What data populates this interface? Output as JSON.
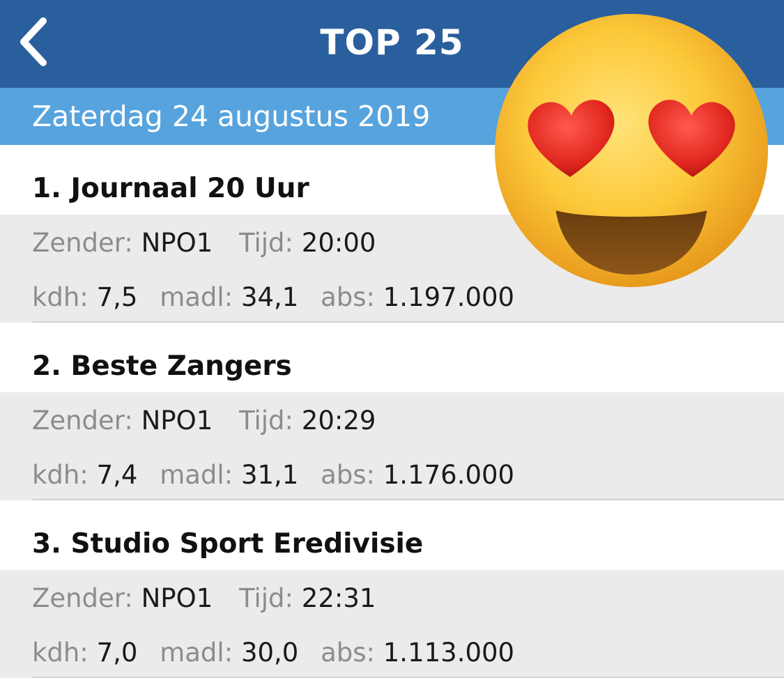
{
  "header": {
    "back_icon": "chevron-left-icon",
    "title": "TOP 25"
  },
  "date_label": "Zaterdag 24 augustus 2019",
  "labels": {
    "channel": "Zender:",
    "time": "Tijd:",
    "kdh": "kdh:",
    "madl": "madl:",
    "abs": "abs:"
  },
  "items": [
    {
      "title": "1. Journaal 20 Uur",
      "channel": "NPO1",
      "time": "20:00",
      "kdh": "7,5",
      "madl": "34,1",
      "abs": "1.197.000"
    },
    {
      "title": "2. Beste Zangers",
      "channel": "NPO1",
      "time": "20:29",
      "kdh": "7,4",
      "madl": "31,1",
      "abs": "1.176.000"
    },
    {
      "title": "3. Studio Sport Eredivisie",
      "channel": "NPO1",
      "time": "22:31",
      "kdh": "7,0",
      "madl": "30,0",
      "abs": "1.113.000"
    }
  ],
  "overlay": {
    "icon": "heart-eyes-emoji-icon"
  },
  "colors": {
    "navbar": "#2a5f9e",
    "date_bar": "#56a3de",
    "detail_bg": "#ebebeb",
    "label_grey": "#8c8c8c"
  }
}
